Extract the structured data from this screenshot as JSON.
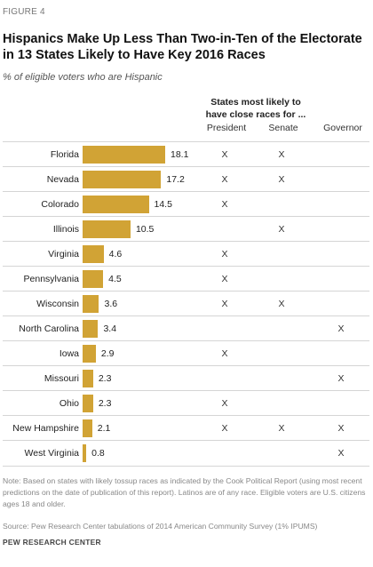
{
  "figure_label": "FIGURE 4",
  "title": "Hispanics Make Up Less Than Two-in-Ten of the Electorate in 13 States Likely to Have Key 2016 Races",
  "subtitle": "% of eligible voters who are Hispanic",
  "column_header": "States most likely to have close races for ...",
  "columns": [
    "President",
    "Senate",
    "Governor"
  ],
  "mark_symbol": "X",
  "note": "Note: Based on states with likely tossup races as indicated by the Cook Political Report (using most recent predictions on the date of publication of this report). Latinos are of any race. Eligible voters are U.S. citizens ages 18 and older.",
  "source": "Source: Pew Research Center tabulations of 2014 American Community Survey (1% IPUMS)",
  "org": "PEW RESEARCH CENTER",
  "colors": {
    "bar": "#d1a335"
  },
  "chart_data": {
    "type": "bar",
    "orientation": "horizontal",
    "title": "Hispanics Make Up Less Than Two-in-Ten of the Electorate in 13 States Likely to Have Key 2016 Races",
    "ylabel": "% of eligible voters who are Hispanic",
    "categories": [
      "Florida",
      "Nevada",
      "Colorado",
      "Illinois",
      "Virginia",
      "Pennsylvania",
      "Wisconsin",
      "North Carolina",
      "Iowa",
      "Missouri",
      "Ohio",
      "New Hampshire",
      "West Virginia"
    ],
    "values": [
      18.1,
      17.2,
      14.5,
      10.5,
      4.6,
      4.5,
      3.6,
      3.4,
      2.9,
      2.3,
      2.3,
      2.1,
      0.8
    ],
    "labels": [
      "18.1",
      "17.2",
      "14.5",
      "10.5",
      "4.6",
      "4.5",
      "3.6",
      "3.4",
      "2.9",
      "2.3",
      "2.3",
      "2.1",
      "0.8"
    ],
    "close_races": {
      "President": [
        true,
        true,
        true,
        false,
        true,
        true,
        true,
        false,
        true,
        false,
        true,
        true,
        false
      ],
      "Senate": [
        true,
        true,
        false,
        true,
        false,
        false,
        true,
        false,
        false,
        false,
        false,
        true,
        false
      ],
      "Governor": [
        false,
        false,
        false,
        false,
        false,
        false,
        false,
        true,
        false,
        true,
        false,
        true,
        true
      ]
    },
    "xlim": [
      0,
      18.1
    ]
  }
}
